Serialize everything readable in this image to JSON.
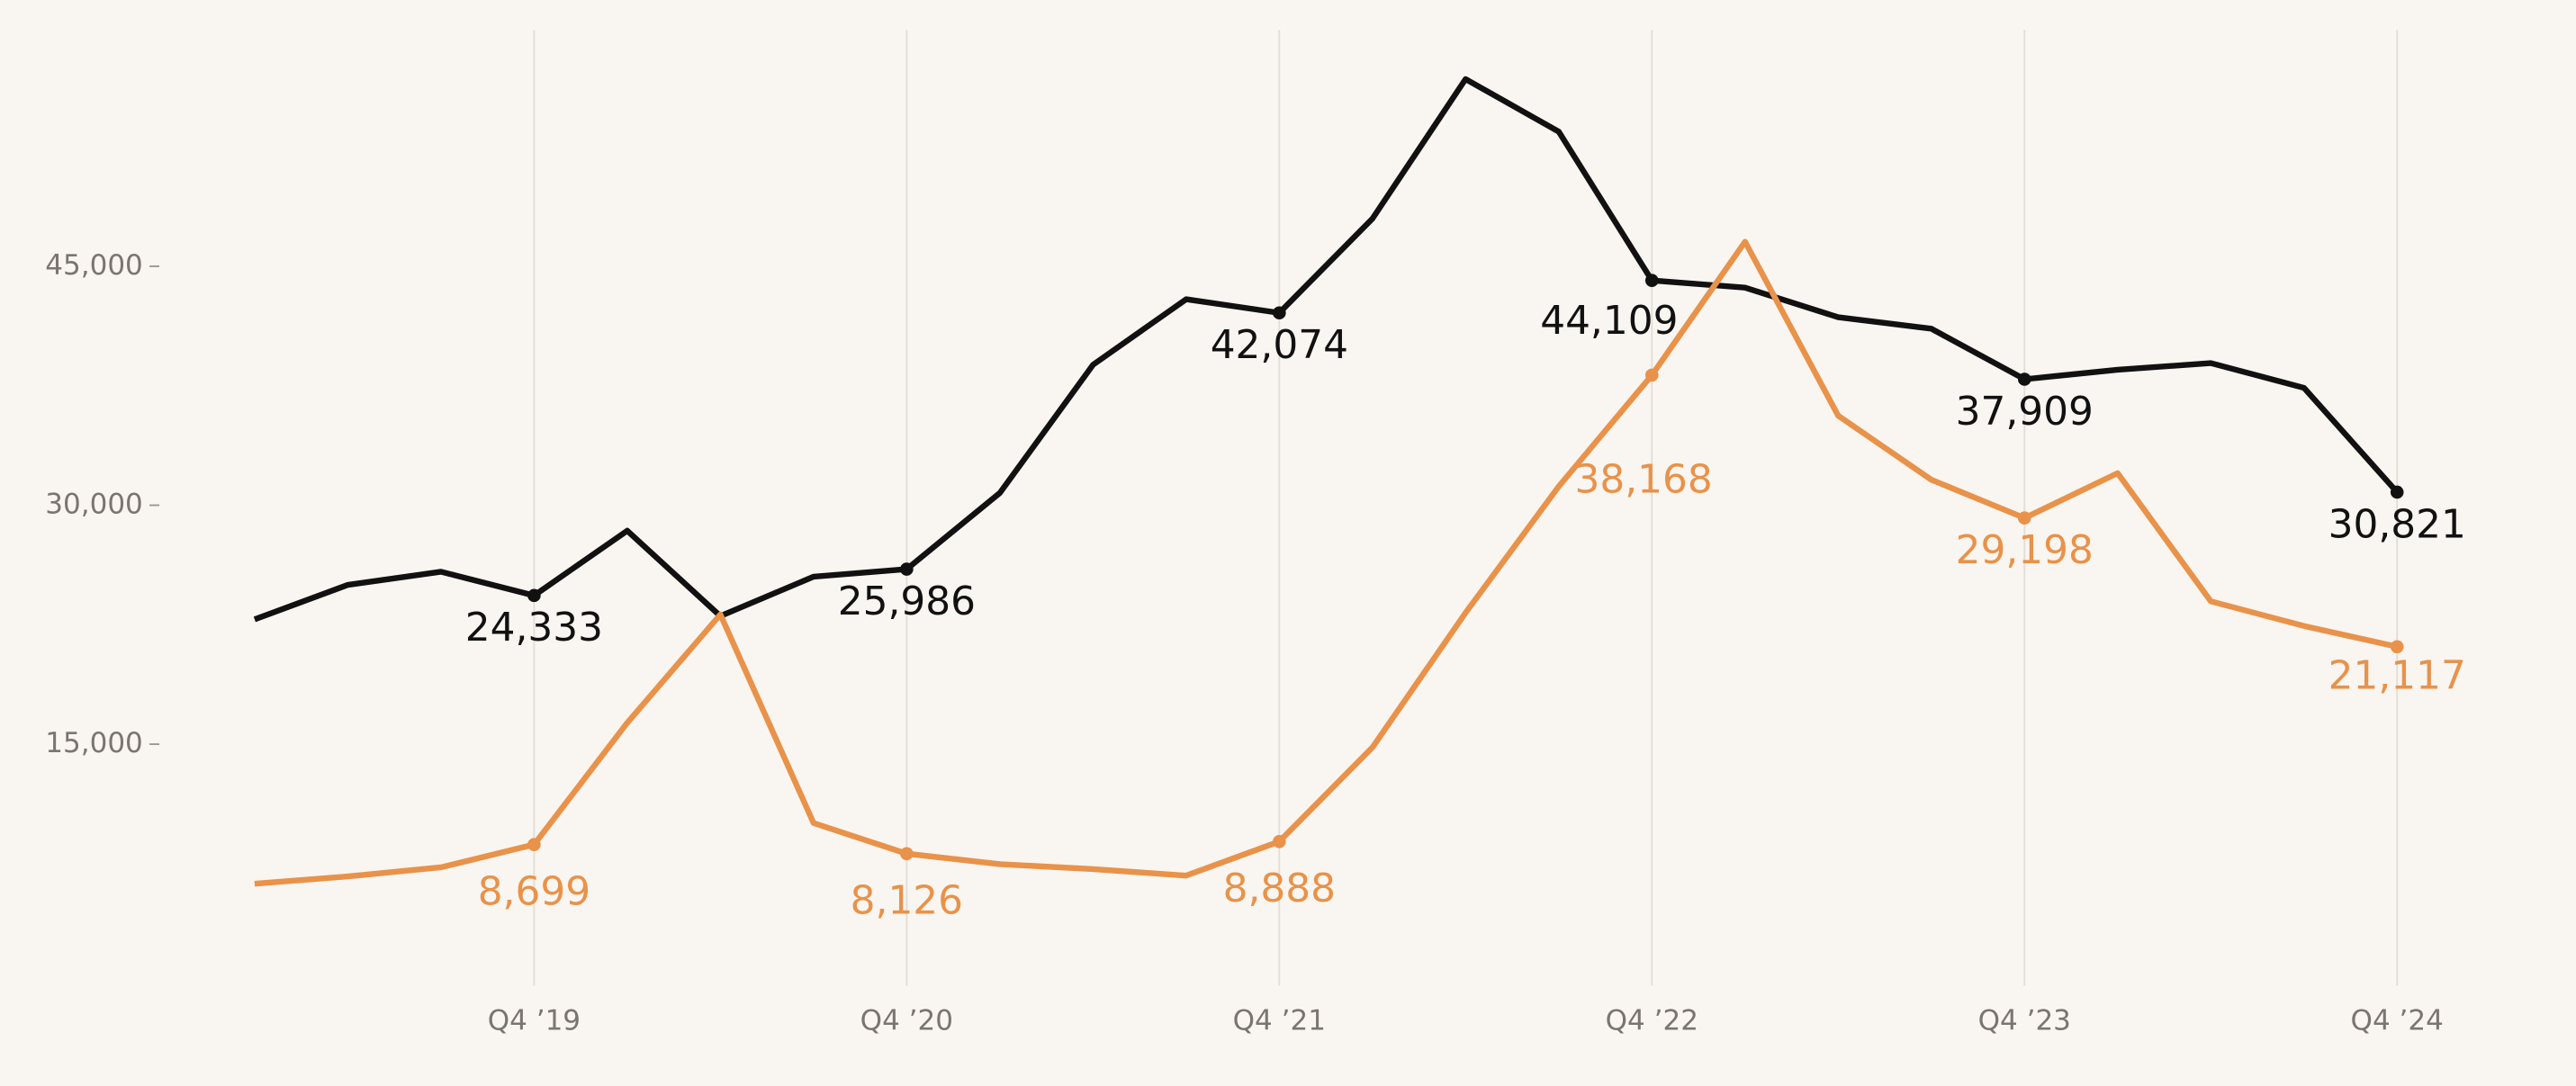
{
  "chart_data": {
    "type": "line",
    "categories": [
      null,
      null,
      null,
      "Q4 ’19",
      null,
      null,
      null,
      "Q4 ’20",
      null,
      null,
      null,
      "Q4 ’21",
      null,
      null,
      null,
      "Q4 ’22",
      null,
      null,
      null,
      "Q4 ’23",
      null,
      null,
      null,
      "Q4 ’24"
    ],
    "series": [
      {
        "color": "#111111",
        "values": [
          22835,
          25000,
          25825,
          24333,
          28400,
          23040,
          25515,
          25986,
          30770,
          38815,
          42930,
          42074,
          47990,
          56750,
          53450,
          44109,
          43660,
          41800,
          41080,
          37909,
          38505,
          38920,
          37370,
          30821
        ],
        "value_labels": [
          null,
          null,
          null,
          "24,333",
          null,
          null,
          null,
          "25,986",
          null,
          null,
          null,
          "42,074",
          null,
          null,
          null,
          "44,109",
          null,
          null,
          null,
          "37,909",
          null,
          null,
          null,
          "30,821"
        ]
      },
      {
        "color": "#e8924a",
        "values": [
          6240,
          6700,
          7270,
          8699,
          16340,
          23140,
          10050,
          8126,
          7470,
          7160,
          6750,
          8888,
          14800,
          23250,
          31180,
          38168,
          46540,
          35620,
          31600,
          29198,
          32010,
          23970,
          22420,
          21117
        ],
        "value_labels": [
          null,
          null,
          null,
          "8,699",
          null,
          null,
          null,
          "8,126",
          null,
          null,
          null,
          "8,888",
          null,
          null,
          null,
          "38,168",
          null,
          null,
          null,
          "29,198",
          null,
          null,
          null,
          "21,117"
        ]
      }
    ],
    "ylim": [
      0,
      60000
    ],
    "yticks": [
      {
        "value": 15000,
        "label": "15,000"
      },
      {
        "value": 30000,
        "label": "30,000"
      },
      {
        "value": 45000,
        "label": "45,000"
      }
    ],
    "grid": "x"
  }
}
